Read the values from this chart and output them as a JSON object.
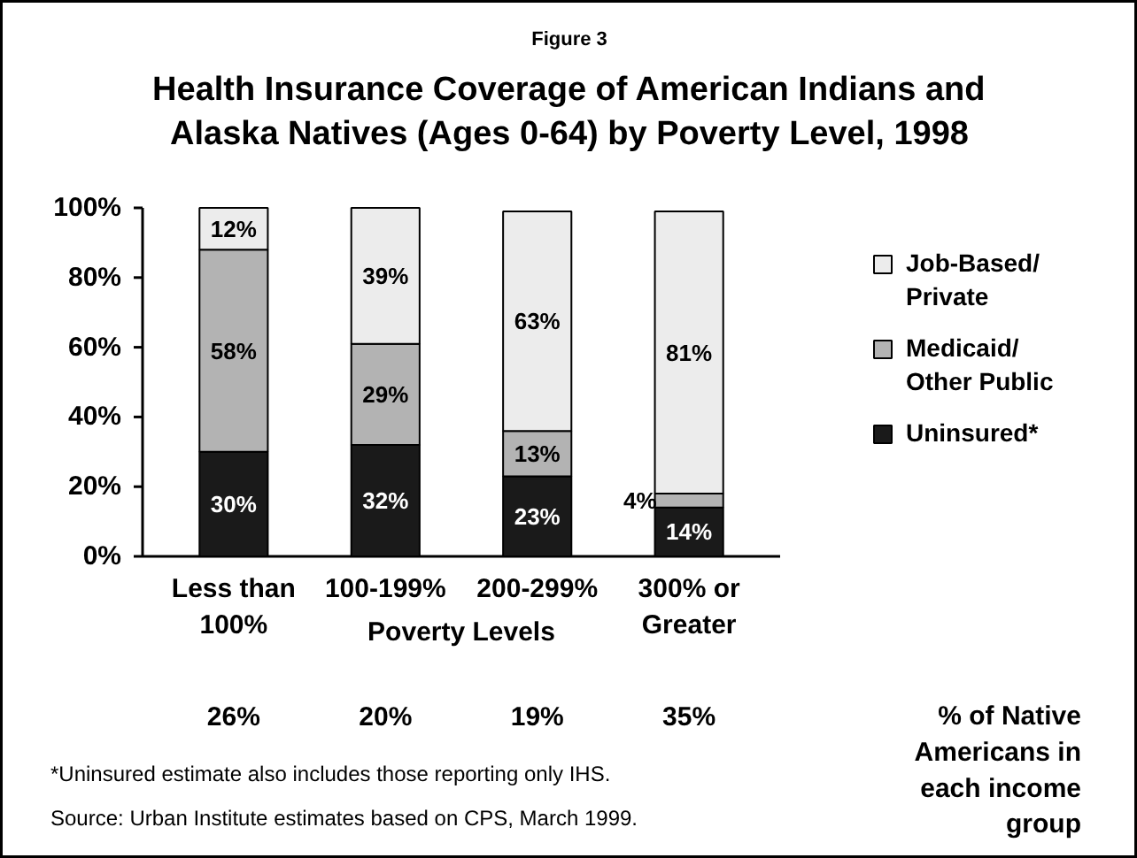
{
  "chart_data": {
    "type": "bar",
    "stacked": true,
    "subtitle": "Figure 3",
    "title": "Health Insurance Coverage of American Indians and\nAlaska Natives (Ages 0-64) by Poverty Level, 1998",
    "xlabel": "Poverty Levels",
    "categories": [
      "Less than\n100%",
      "100-199%",
      "200-299%",
      "300% or\nGreater"
    ],
    "series": [
      {
        "name": "Uninsured*",
        "color": "#1a1a1a",
        "values": [
          30,
          32,
          23,
          14
        ],
        "value_labels": [
          "30%",
          "32%",
          "23%",
          "14%"
        ]
      },
      {
        "name": "Medicaid/\nOther Public",
        "color": "#b3b3b3",
        "values": [
          58,
          29,
          13,
          4
        ],
        "value_labels": [
          "58%",
          "29%",
          "13%",
          "4%"
        ]
      },
      {
        "name": "Job-Based/\nPrivate",
        "color": "#ececec",
        "values": [
          12,
          39,
          63,
          81
        ],
        "value_labels": [
          "12%",
          "39%",
          "63%",
          "81%"
        ]
      }
    ],
    "ylim": [
      0,
      100
    ],
    "yticks": [
      {
        "value": 0,
        "label": "0%"
      },
      {
        "value": 20,
        "label": "20%"
      },
      {
        "value": 40,
        "label": "40%"
      },
      {
        "value": 60,
        "label": "60%"
      },
      {
        "value": 80,
        "label": "80%"
      },
      {
        "value": 100,
        "label": "100%"
      }
    ],
    "grid": false,
    "legend": "right",
    "annotations": [
      "% of Native\nAmericans in\neach income\ngroup",
      "26%",
      "20%",
      "19%",
      "35%",
      "*Uninsured estimate also includes those reporting only IHS.",
      "Source:  Urban Institute estimates based on CPS, March 1999."
    ]
  }
}
